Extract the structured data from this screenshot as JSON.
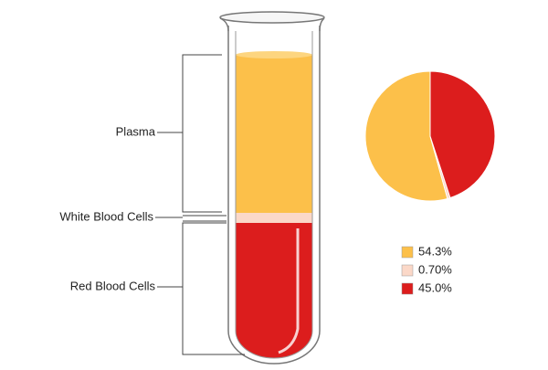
{
  "chart_data": {
    "type": "pie",
    "categories": [
      "Plasma",
      "White Blood Cells",
      "Red Blood Cells"
    ],
    "values": [
      54.3,
      0.7,
      45.0
    ],
    "value_labels": [
      "54.3%",
      "0.70%",
      "45.0%"
    ],
    "colors": [
      "#fcc04a",
      "#fbd8c8",
      "#dc1d1d"
    ]
  }
}
